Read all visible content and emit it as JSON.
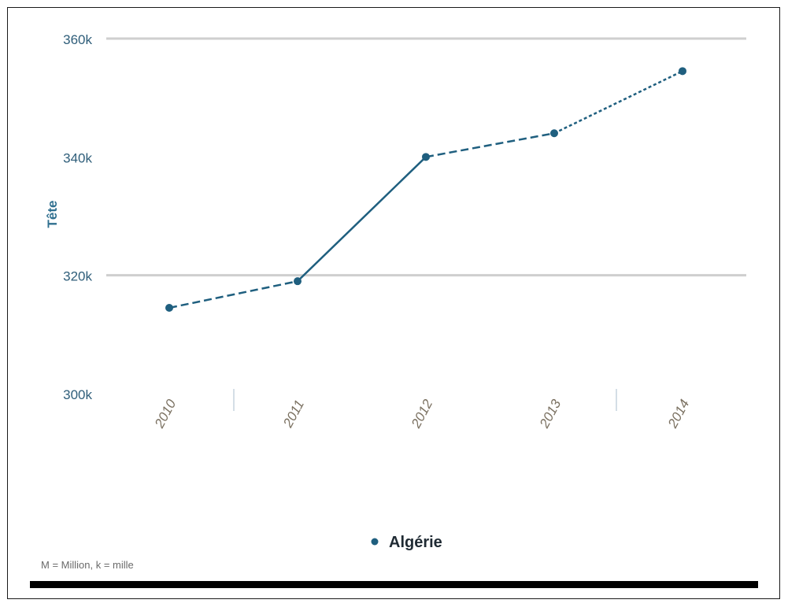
{
  "chart_data": {
    "type": "line",
    "title": "",
    "xlabel": "",
    "ylabel": "Tête",
    "categories": [
      "2010",
      "2011",
      "2012",
      "2013",
      "2014"
    ],
    "series": [
      {
        "name": "Algérie",
        "values": [
          314500,
          319000,
          340000,
          344000,
          354500
        ]
      }
    ],
    "ylim": [
      300000,
      360000
    ],
    "yticks": [
      {
        "value": 300000,
        "label": "300k"
      },
      {
        "value": 320000,
        "label": "320k"
      },
      {
        "value": 340000,
        "label": "340k"
      },
      {
        "value": 360000,
        "label": "360k"
      }
    ],
    "gridlines_at": [
      320000,
      360000
    ],
    "grid": true,
    "legend_position": "bottom-center",
    "footnote": "M = Million, k = mille",
    "colors": {
      "series": "#1f5f7f",
      "grid": "#cfcfcf",
      "frame": "#1a1a1a",
      "bottom_bar": "#000000"
    }
  }
}
